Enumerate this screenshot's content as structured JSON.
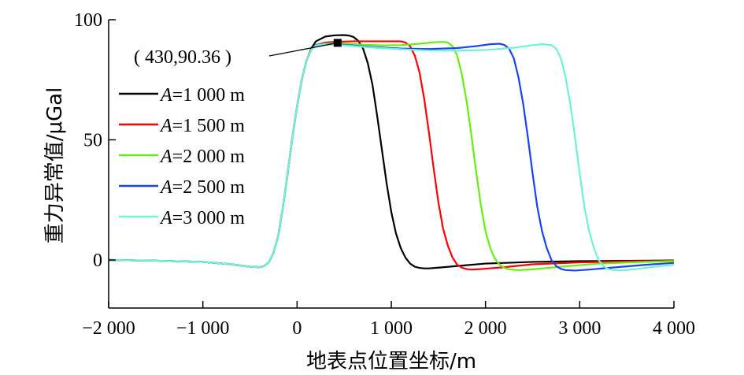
{
  "chart_data": {
    "type": "line",
    "title": "",
    "xlabel": "地表点位置坐标/m",
    "ylabel": "重力异常值/μGal",
    "xlim": [
      -2000,
      4000
    ],
    "ylim": [
      -20,
      100
    ],
    "x_ticks": [
      -2000,
      -1000,
      0,
      1000,
      2000,
      3000,
      4000
    ],
    "x_tick_labels": [
      "−2 000",
      "−1 000",
      "0",
      "1 000",
      "2 000",
      "3 000",
      "4 000"
    ],
    "y_ticks": [
      0,
      50,
      100
    ],
    "y_tick_labels": [
      "0",
      "50",
      "100"
    ],
    "grid": false,
    "legend_position": "left",
    "series": [
      {
        "name": "A=1 000 m",
        "var": "A",
        "value_text": "=1 000 m",
        "color": "#000000",
        "points": [
          [
            -2000,
            0
          ],
          [
            -1500,
            -0.3
          ],
          [
            -1000,
            -0.8
          ],
          [
            -700,
            -1.8
          ],
          [
            -500,
            -2.8
          ],
          [
            -400,
            -3.0
          ],
          [
            -350,
            -2.5
          ],
          [
            -300,
            -1
          ],
          [
            -250,
            3
          ],
          [
            -200,
            10
          ],
          [
            -150,
            22
          ],
          [
            -100,
            36
          ],
          [
            -50,
            51
          ],
          [
            0,
            64
          ],
          [
            50,
            75
          ],
          [
            100,
            83
          ],
          [
            150,
            88
          ],
          [
            200,
            91
          ],
          [
            300,
            93
          ],
          [
            400,
            93.5
          ],
          [
            500,
            93.6
          ],
          [
            550,
            93.4
          ],
          [
            600,
            92.8
          ],
          [
            650,
            91.2
          ],
          [
            700,
            88
          ],
          [
            750,
            82
          ],
          [
            800,
            73
          ],
          [
            850,
            60
          ],
          [
            900,
            46
          ],
          [
            950,
            32
          ],
          [
            1000,
            20
          ],
          [
            1050,
            11
          ],
          [
            1100,
            5
          ],
          [
            1150,
            1
          ],
          [
            1200,
            -1.5
          ],
          [
            1250,
            -2.8
          ],
          [
            1300,
            -3.3
          ],
          [
            1350,
            -3.5
          ],
          [
            1400,
            -3.5
          ],
          [
            1500,
            -3.2
          ],
          [
            1700,
            -2.5
          ],
          [
            2000,
            -1.5
          ],
          [
            2500,
            -0.8
          ],
          [
            3000,
            -0.5
          ],
          [
            4000,
            -0.2
          ]
        ]
      },
      {
        "name": "A=1 500 m",
        "var": "A",
        "value_text": "=1 500 m",
        "color": "#ff0000",
        "points": [
          [
            -2000,
            0
          ],
          [
            -1500,
            -0.3
          ],
          [
            -1000,
            -0.8
          ],
          [
            -700,
            -1.8
          ],
          [
            -500,
            -2.8
          ],
          [
            -400,
            -3.0
          ],
          [
            -350,
            -2.5
          ],
          [
            -300,
            -1
          ],
          [
            -250,
            3
          ],
          [
            -200,
            10
          ],
          [
            -150,
            22
          ],
          [
            -100,
            36
          ],
          [
            -50,
            51
          ],
          [
            0,
            64
          ],
          [
            50,
            75
          ],
          [
            100,
            83
          ],
          [
            150,
            87.5
          ],
          [
            200,
            89.5
          ],
          [
            300,
            90.5
          ],
          [
            400,
            90.8
          ],
          [
            600,
            91
          ],
          [
            800,
            91
          ],
          [
            1000,
            91
          ],
          [
            1100,
            91
          ],
          [
            1150,
            90.5
          ],
          [
            1200,
            89
          ],
          [
            1250,
            85
          ],
          [
            1300,
            78
          ],
          [
            1350,
            67
          ],
          [
            1400,
            53
          ],
          [
            1450,
            38
          ],
          [
            1500,
            24
          ],
          [
            1550,
            13
          ],
          [
            1600,
            6
          ],
          [
            1650,
            1
          ],
          [
            1700,
            -2
          ],
          [
            1750,
            -3.2
          ],
          [
            1800,
            -3.8
          ],
          [
            1850,
            -4
          ],
          [
            1950,
            -3.8
          ],
          [
            2200,
            -3
          ],
          [
            2500,
            -1.8
          ],
          [
            3000,
            -1
          ],
          [
            3500,
            -0.6
          ],
          [
            4000,
            -0.3
          ]
        ]
      },
      {
        "name": "A=2 000 m",
        "var": "A",
        "value_text": "=2 000 m",
        "color": "#66ee11",
        "points": [
          [
            -2000,
            0
          ],
          [
            -1500,
            -0.3
          ],
          [
            -1000,
            -0.8
          ],
          [
            -700,
            -1.8
          ],
          [
            -500,
            -2.8
          ],
          [
            -400,
            -3.0
          ],
          [
            -350,
            -2.5
          ],
          [
            -300,
            -1
          ],
          [
            -250,
            3
          ],
          [
            -200,
            10
          ],
          [
            -150,
            22
          ],
          [
            -100,
            36
          ],
          [
            -50,
            51
          ],
          [
            0,
            64
          ],
          [
            50,
            75
          ],
          [
            100,
            83
          ],
          [
            150,
            87.5
          ],
          [
            200,
            89.5
          ],
          [
            300,
            90.2
          ],
          [
            500,
            90.1
          ],
          [
            700,
            89.6
          ],
          [
            900,
            89.3
          ],
          [
            1100,
            89.4
          ],
          [
            1300,
            90
          ],
          [
            1450,
            90.6
          ],
          [
            1550,
            90.8
          ],
          [
            1600,
            90.5
          ],
          [
            1650,
            89
          ],
          [
            1700,
            85
          ],
          [
            1750,
            77
          ],
          [
            1800,
            66
          ],
          [
            1850,
            52
          ],
          [
            1900,
            37
          ],
          [
            1950,
            23
          ],
          [
            2000,
            12
          ],
          [
            2050,
            5
          ],
          [
            2100,
            0.5
          ],
          [
            2150,
            -2
          ],
          [
            2200,
            -3.3
          ],
          [
            2250,
            -3.9
          ],
          [
            2350,
            -4.2
          ],
          [
            2500,
            -3.9
          ],
          [
            2800,
            -2.8
          ],
          [
            3200,
            -1.5
          ],
          [
            3600,
            -0.9
          ],
          [
            4000,
            -0.5
          ]
        ]
      },
      {
        "name": "A=2 500 m",
        "var": "A",
        "value_text": "=2 500 m",
        "color": "#1744ee",
        "points": [
          [
            -2000,
            0
          ],
          [
            -1500,
            -0.3
          ],
          [
            -1000,
            -0.8
          ],
          [
            -700,
            -1.8
          ],
          [
            -500,
            -2.8
          ],
          [
            -400,
            -3.0
          ],
          [
            -350,
            -2.5
          ],
          [
            -300,
            -1
          ],
          [
            -250,
            3
          ],
          [
            -200,
            10
          ],
          [
            -150,
            22
          ],
          [
            -100,
            36
          ],
          [
            -50,
            51
          ],
          [
            0,
            64
          ],
          [
            50,
            75
          ],
          [
            100,
            83
          ],
          [
            150,
            87.5
          ],
          [
            200,
            89.5
          ],
          [
            300,
            90
          ],
          [
            500,
            89.5
          ],
          [
            800,
            88.6
          ],
          [
            1100,
            88
          ],
          [
            1400,
            87.8
          ],
          [
            1700,
            88.2
          ],
          [
            1900,
            89
          ],
          [
            2050,
            89.8
          ],
          [
            2150,
            90
          ],
          [
            2200,
            89.5
          ],
          [
            2250,
            88
          ],
          [
            2300,
            84
          ],
          [
            2350,
            76
          ],
          [
            2400,
            65
          ],
          [
            2450,
            51
          ],
          [
            2500,
            36
          ],
          [
            2550,
            22
          ],
          [
            2600,
            12
          ],
          [
            2650,
            5
          ],
          [
            2700,
            0
          ],
          [
            2750,
            -2.5
          ],
          [
            2800,
            -3.7
          ],
          [
            2850,
            -4.2
          ],
          [
            2950,
            -4.4
          ],
          [
            3100,
            -4
          ],
          [
            3400,
            -3
          ],
          [
            3700,
            -2
          ],
          [
            4000,
            -1.2
          ]
        ]
      },
      {
        "name": "A=3 000 m",
        "var": "A",
        "value_text": "=3 000 m",
        "color": "#6ff2d4",
        "points": [
          [
            -2000,
            0
          ],
          [
            -1500,
            -0.3
          ],
          [
            -1000,
            -0.8
          ],
          [
            -700,
            -1.8
          ],
          [
            -500,
            -2.8
          ],
          [
            -400,
            -3.0
          ],
          [
            -350,
            -2.5
          ],
          [
            -300,
            -1
          ],
          [
            -250,
            3
          ],
          [
            -200,
            10
          ],
          [
            -150,
            22
          ],
          [
            -100,
            36
          ],
          [
            -50,
            51
          ],
          [
            0,
            64
          ],
          [
            50,
            75
          ],
          [
            100,
            83
          ],
          [
            150,
            87.5
          ],
          [
            200,
            89.3
          ],
          [
            300,
            89.8
          ],
          [
            500,
            89.3
          ],
          [
            800,
            88.4
          ],
          [
            1100,
            87.7
          ],
          [
            1400,
            87.2
          ],
          [
            1700,
            87.1
          ],
          [
            2000,
            87.4
          ],
          [
            2300,
            88.3
          ],
          [
            2500,
            89.4
          ],
          [
            2600,
            89.8
          ],
          [
            2700,
            89.4
          ],
          [
            2750,
            88
          ],
          [
            2800,
            84
          ],
          [
            2850,
            76
          ],
          [
            2900,
            65
          ],
          [
            2950,
            51
          ],
          [
            3000,
            36
          ],
          [
            3050,
            22
          ],
          [
            3100,
            12
          ],
          [
            3150,
            5
          ],
          [
            3200,
            0
          ],
          [
            3250,
            -2.5
          ],
          [
            3300,
            -3.7
          ],
          [
            3350,
            -4.2
          ],
          [
            3450,
            -4.3
          ],
          [
            3600,
            -3.8
          ],
          [
            3800,
            -2.8
          ],
          [
            4000,
            -2
          ]
        ]
      }
    ],
    "annotation": {
      "text": "( 430,90.36 )",
      "x": 430,
      "y": 90.36
    }
  }
}
